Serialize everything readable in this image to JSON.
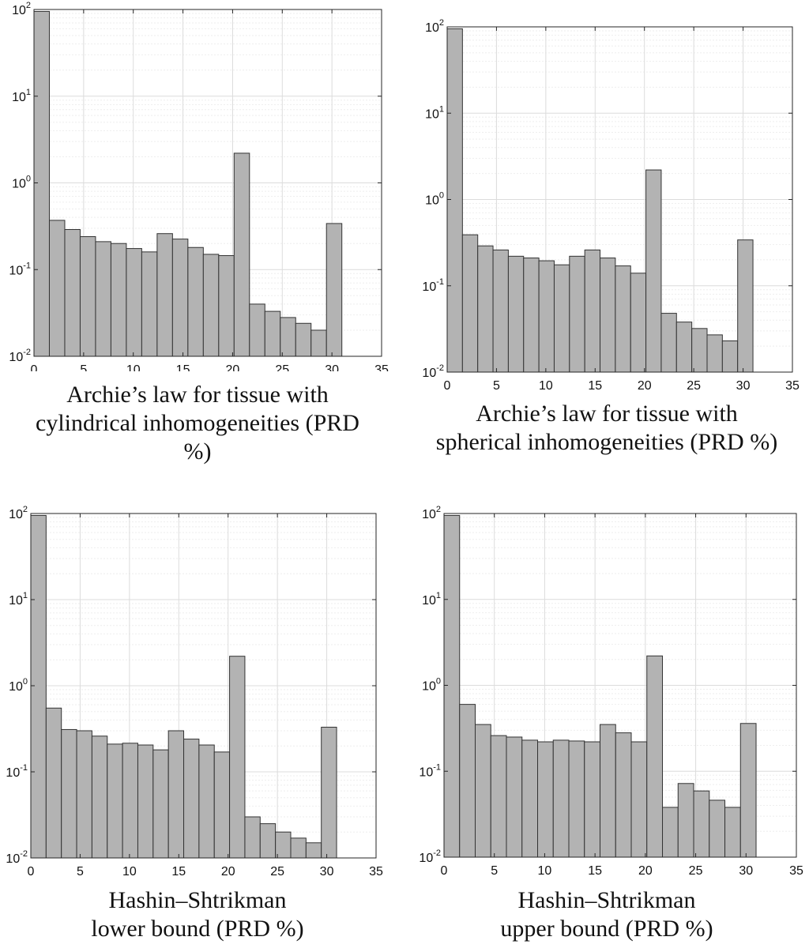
{
  "chart_data": [
    {
      "type": "bar",
      "xlabel": "",
      "ylabel": "",
      "yscale": "log",
      "grid": true,
      "xlim": [
        0,
        35
      ],
      "ylim": [
        0.01,
        100
      ],
      "xticks": [
        "0",
        "5",
        "10",
        "15",
        "20",
        "25",
        "30",
        "35"
      ],
      "yticks": [
        {
          "base": "10",
          "exp": "-2"
        },
        {
          "base": "10",
          "exp": "-1"
        },
        {
          "base": "10",
          "exp": "0"
        },
        {
          "base": "10",
          "exp": "1"
        },
        {
          "base": "10",
          "exp": "2"
        }
      ],
      "bin_width": 1.55,
      "bin_start": 0,
      "caption_lines": [
        "Archie’s law for tissue with",
        "cylindrical inhomogeneities (PRD",
        "%)"
      ],
      "values": [
        95,
        0.37,
        0.29,
        0.24,
        0.21,
        0.2,
        0.175,
        0.16,
        0.26,
        0.225,
        0.18,
        0.15,
        0.145,
        2.2,
        0.04,
        0.033,
        0.028,
        0.024,
        0.02,
        0.34
      ]
    },
    {
      "type": "bar",
      "xlabel": "",
      "ylabel": "",
      "yscale": "log",
      "grid": true,
      "xlim": [
        0,
        35
      ],
      "ylim": [
        0.01,
        100
      ],
      "xticks": [
        "0",
        "5",
        "10",
        "15",
        "20",
        "25",
        "30",
        "35"
      ],
      "yticks": [
        {
          "base": "10",
          "exp": "-2"
        },
        {
          "base": "10",
          "exp": "-1"
        },
        {
          "base": "10",
          "exp": "0"
        },
        {
          "base": "10",
          "exp": "1"
        },
        {
          "base": "10",
          "exp": "2"
        }
      ],
      "bin_width": 1.55,
      "bin_start": 0,
      "caption_lines": [
        "Archie’s law for tissue with",
        "spherical inhomogeneities (PRD %)"
      ],
      "values": [
        95,
        0.39,
        0.29,
        0.26,
        0.22,
        0.21,
        0.195,
        0.175,
        0.22,
        0.26,
        0.21,
        0.17,
        0.14,
        2.2,
        0.048,
        0.038,
        0.032,
        0.027,
        0.023,
        0.34
      ]
    },
    {
      "type": "bar",
      "xlabel": "",
      "ylabel": "",
      "yscale": "log",
      "grid": true,
      "xlim": [
        0,
        35
      ],
      "ylim": [
        0.01,
        100
      ],
      "xticks": [
        "0",
        "5",
        "10",
        "15",
        "20",
        "25",
        "30",
        "35"
      ],
      "yticks": [
        {
          "base": "10",
          "exp": "-2"
        },
        {
          "base": "10",
          "exp": "-1"
        },
        {
          "base": "10",
          "exp": "0"
        },
        {
          "base": "10",
          "exp": "1"
        },
        {
          "base": "10",
          "exp": "2"
        }
      ],
      "bin_width": 1.55,
      "bin_start": 0,
      "caption_lines": [
        "Hashin–Shtrikman",
        "lower bound (PRD %)"
      ],
      "values": [
        95,
        0.55,
        0.31,
        0.3,
        0.26,
        0.21,
        0.215,
        0.205,
        0.18,
        0.3,
        0.24,
        0.205,
        0.17,
        2.2,
        0.03,
        0.025,
        0.02,
        0.017,
        0.015,
        0.33
      ]
    },
    {
      "type": "bar",
      "xlabel": "",
      "ylabel": "",
      "yscale": "log",
      "grid": true,
      "xlim": [
        0,
        35
      ],
      "ylim": [
        0.01,
        100
      ],
      "xticks": [
        "0",
        "5",
        "10",
        "15",
        "20",
        "25",
        "30",
        "35"
      ],
      "yticks": [
        {
          "base": "10",
          "exp": "-2"
        },
        {
          "base": "10",
          "exp": "-1"
        },
        {
          "base": "10",
          "exp": "0"
        },
        {
          "base": "10",
          "exp": "1"
        },
        {
          "base": "10",
          "exp": "2"
        }
      ],
      "bin_width": 1.55,
      "bin_start": 0,
      "caption_lines": [
        "Hashin–Shtrikman",
        "upper bound (PRD %)"
      ],
      "values": [
        95,
        0.6,
        0.35,
        0.26,
        0.25,
        0.23,
        0.22,
        0.23,
        0.225,
        0.22,
        0.35,
        0.28,
        0.22,
        2.2,
        0.038,
        0.072,
        0.059,
        0.046,
        0.038,
        0.36
      ]
    }
  ],
  "colors": {
    "bar_fill": "#b3b3b3",
    "bar_stroke": "#333333",
    "axis": "#262626",
    "grid_major": "#dcdcdc",
    "grid_minor": "#eeeeee"
  }
}
